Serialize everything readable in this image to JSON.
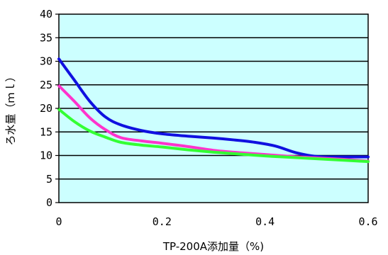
{
  "chart_data": {
    "type": "line",
    "xlabel": "TP-200A添加量（%)",
    "ylabel": "ろ水量（ｍｌ）",
    "xlim": [
      0,
      0.6
    ],
    "ylim": [
      0,
      40
    ],
    "x_ticks": [
      0,
      0.2,
      0.4,
      0.6
    ],
    "x_tick_labels": [
      "0",
      "0.2",
      "0.4",
      "0.6"
    ],
    "y_ticks": [
      0,
      5,
      10,
      15,
      20,
      25,
      30,
      35,
      40
    ],
    "y_tick_labels": [
      "0",
      "5",
      "10",
      "15",
      "20",
      "25",
      "30",
      "35",
      "40"
    ],
    "grid": "horizontal",
    "plot_background": "#ccffff",
    "series": [
      {
        "color": "#1010e0",
        "x": [
          0,
          0.03,
          0.06,
          0.09,
          0.12,
          0.16,
          0.2,
          0.25,
          0.3,
          0.34,
          0.38,
          0.42,
          0.46,
          0.5,
          0.55,
          0.6
        ],
        "values": [
          30.5,
          26,
          21.5,
          18.2,
          16.5,
          15.3,
          14.6,
          14.1,
          13.7,
          13.3,
          12.8,
          12.0,
          10.6,
          9.8,
          9.7,
          9.7
        ]
      },
      {
        "color": "#ff33cc",
        "x": [
          0,
          0.03,
          0.06,
          0.09,
          0.12,
          0.16,
          0.2,
          0.25,
          0.3,
          0.35,
          0.4,
          0.45,
          0.5,
          0.55,
          0.6
        ],
        "values": [
          24.8,
          21.5,
          18.0,
          15.5,
          13.8,
          13.1,
          12.6,
          11.9,
          11.1,
          10.6,
          10.2,
          9.8,
          9.5,
          9.2,
          8.8
        ]
      },
      {
        "color": "#33ff33",
        "x": [
          0,
          0.03,
          0.06,
          0.09,
          0.12,
          0.16,
          0.2,
          0.25,
          0.3,
          0.35,
          0.4,
          0.45,
          0.5,
          0.55,
          0.6
        ],
        "values": [
          19.8,
          17.2,
          15.2,
          13.9,
          12.8,
          12.2,
          11.8,
          11.2,
          10.7,
          10.3,
          9.9,
          9.6,
          9.3,
          9.0,
          8.7
        ]
      }
    ]
  }
}
